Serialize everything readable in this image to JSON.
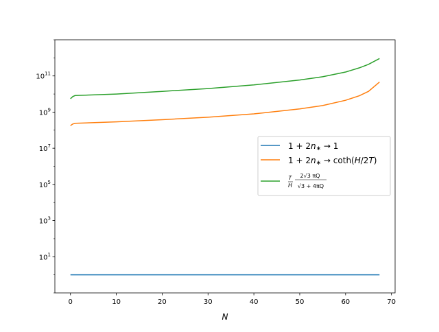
{
  "chart_data": {
    "type": "line",
    "title": "",
    "xlabel": "N",
    "ylabel": "",
    "xlim": [
      -3.4,
      70.8
    ],
    "ylim": [
      0.1,
      10000000000000.0
    ],
    "yscale": "log",
    "x_ticks": [
      0,
      10,
      20,
      30,
      40,
      50,
      60,
      70
    ],
    "x_tick_labels": [
      "0",
      "10",
      "20",
      "30",
      "40",
      "50",
      "60",
      "70"
    ],
    "y_ticks": [
      10,
      1000,
      100000,
      10000000,
      1000000000,
      100000000000
    ],
    "y_tick_labels": [
      {
        "base": "10",
        "exp": "1"
      },
      {
        "base": "10",
        "exp": "3"
      },
      {
        "base": "10",
        "exp": "5"
      },
      {
        "base": "10",
        "exp": "7"
      },
      {
        "base": "10",
        "exp": "9"
      },
      {
        "base": "10",
        "exp": "11"
      }
    ],
    "grid": false,
    "legend_position": "center-right",
    "series": [
      {
        "name": "1 + 2n* → 1",
        "color": "#1f77b4",
        "points": [
          [
            0,
            1
          ],
          [
            67.4,
            1
          ]
        ]
      },
      {
        "name": "1 + 2n* → coth(H/2T)",
        "color": "#ff7f0e",
        "points": [
          [
            0,
            180000000.0
          ],
          [
            0.5,
            220000000.0
          ],
          [
            1,
            240000000.0
          ],
          [
            10,
            290000000.0
          ],
          [
            20,
            380000000.0
          ],
          [
            30,
            520000000.0
          ],
          [
            40,
            800000000.0
          ],
          [
            50,
            1500000000.0
          ],
          [
            55,
            2300000000.0
          ],
          [
            60,
            4500000000.0
          ],
          [
            63,
            8000000000.0
          ],
          [
            65,
            14000000000.0
          ],
          [
            67.4,
            46000000000.0
          ]
        ]
      },
      {
        "name": "T/H · 2√3 πQ / √(3 + 4πQ)",
        "color": "#2ca02c",
        "points": [
          [
            0,
            5500000000.0
          ],
          [
            0.5,
            7200000000.0
          ],
          [
            1,
            8200000000.0
          ],
          [
            10,
            10000000000.0
          ],
          [
            20,
            14000000000.0
          ],
          [
            30,
            20000000000.0
          ],
          [
            40,
            32000000000.0
          ],
          [
            50,
            60000000000.0
          ],
          [
            55,
            90000000000.0
          ],
          [
            60,
            165000000000.0
          ],
          [
            63,
            280000000000.0
          ],
          [
            65,
            440000000000.0
          ],
          [
            67.4,
            920000000000.0
          ]
        ]
      }
    ],
    "legend_labels": [
      {
        "a": "1 + 2",
        "b": "n",
        "c": "∗",
        "d": " → 1"
      },
      {
        "a": "1 + 2",
        "b": "n",
        "c": "∗",
        "d": " → coth(",
        "e": "H",
        "f": "/2",
        "g": "T",
        "h": ")"
      },
      {
        "num_T": "T",
        "den_H": "H",
        "num_expr": "2√3 πQ",
        "den_expr": "√3 + 4πQ"
      }
    ]
  }
}
